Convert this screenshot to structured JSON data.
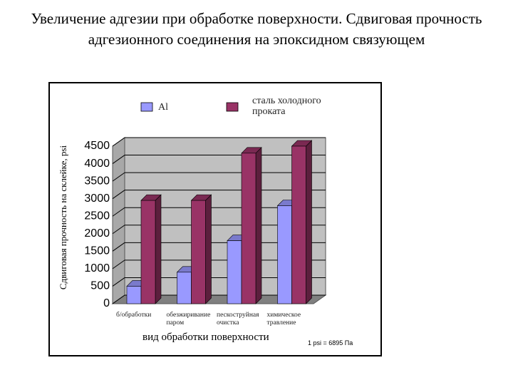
{
  "chart_data": {
    "type": "bar3d",
    "title": "Увеличение адгезии при обработке поверхности. Сдвиговая прочность адгезионного соединения на эпоксидном связующем",
    "categories": [
      "б/обработки",
      "обезжиривание паром",
      "пескоструйная очистка",
      "химическое травление"
    ],
    "series": [
      {
        "name": "Al",
        "color": "#9999ff",
        "values": [
          500,
          900,
          1800,
          2800
        ]
      },
      {
        "name": "сталь холодного проката",
        "color": "#993366",
        "values": [
          2950,
          2950,
          4300,
          4500
        ]
      }
    ],
    "ylim": [
      0,
      4500
    ],
    "yticks": [
      0,
      500,
      1000,
      1500,
      2000,
      2500,
      3000,
      3500,
      4000,
      4500
    ],
    "grid": true,
    "y_label": "Сдвиговая прочность на склейке, psi",
    "x_label": "вид обработки поверхности",
    "note": "1 psi = 6895 Па"
  }
}
